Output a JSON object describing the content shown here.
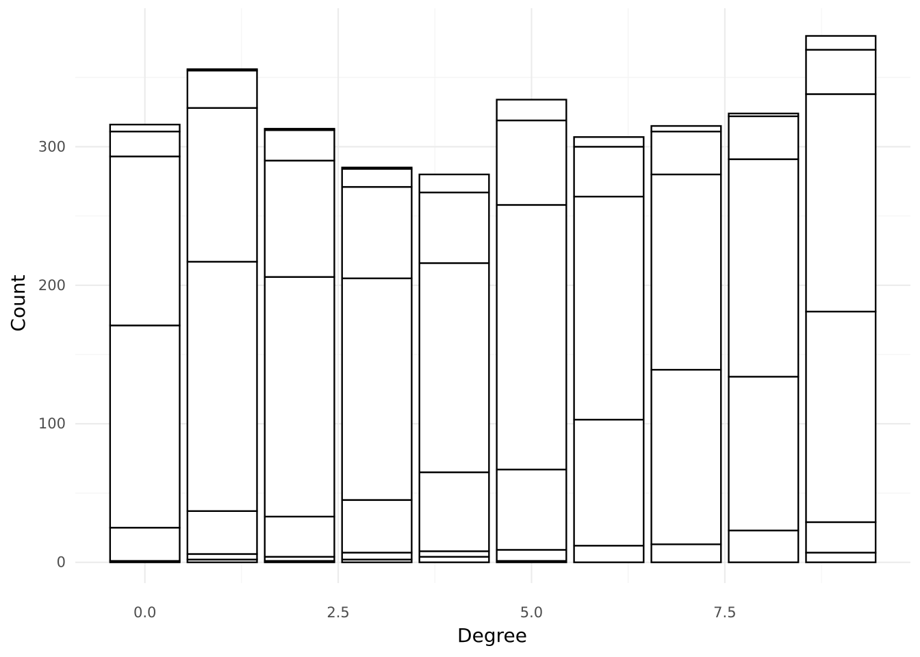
{
  "chart_data": {
    "type": "bar",
    "stacked": true,
    "xlabel": "Degree",
    "ylabel": "Count",
    "xlim": [
      -0.9,
      9.9
    ],
    "ylim": [
      -15,
      400
    ],
    "x_ticks": [
      0,
      2.5,
      5,
      7.5
    ],
    "x_tick_labels": [
      "0.0",
      "2.5",
      "5.0",
      "7.5"
    ],
    "y_ticks": [
      0,
      100,
      200,
      300
    ],
    "y_tick_labels": [
      "0",
      "100",
      "200",
      "300"
    ],
    "grid": true,
    "legend": "none",
    "bar_width": 0.9,
    "x": [
      0,
      1,
      2,
      3,
      4,
      5,
      6,
      7,
      8,
      9
    ],
    "stack_boundaries": [
      [
        0,
        1,
        25,
        171,
        293,
        311,
        316
      ],
      [
        0,
        2,
        6,
        37,
        217,
        328,
        355,
        356
      ],
      [
        0,
        1,
        4,
        33,
        206,
        290,
        312,
        313
      ],
      [
        0,
        2,
        7,
        45,
        205,
        271,
        284,
        285
      ],
      [
        0,
        4,
        8,
        65,
        216,
        267,
        280
      ],
      [
        0,
        1,
        9,
        67,
        258,
        319,
        334
      ],
      [
        0,
        12,
        103,
        264,
        300,
        307
      ],
      [
        0,
        13,
        139,
        280,
        311,
        315
      ],
      [
        0,
        23,
        134,
        291,
        322,
        324
      ],
      [
        0,
        7,
        29,
        181,
        338,
        370,
        380
      ]
    ],
    "totals": [
      316,
      356,
      313,
      285,
      280,
      334,
      307,
      315,
      324,
      380
    ]
  }
}
